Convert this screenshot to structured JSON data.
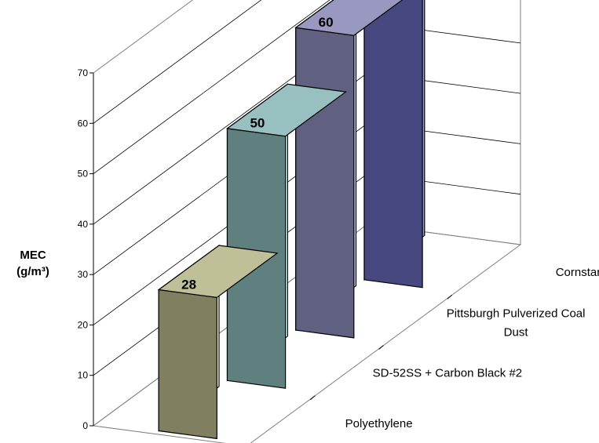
{
  "chart_data": {
    "type": "bar",
    "three_d": true,
    "title": "",
    "ylabel": "MEC (g/m³)",
    "ylabel_lines": [
      "MEC",
      "(g/m³)"
    ],
    "xlabel": "",
    "ylim": [
      0,
      70
    ],
    "yticks": [
      0,
      10,
      20,
      30,
      40,
      50,
      60,
      70
    ],
    "grid": true,
    "legend": "none",
    "categories": [
      "Polyethylene",
      "SD-52SS + Carbon Black #2",
      "Pittsburgh Pulverized Coal Dust",
      "Cornstarch"
    ],
    "category_label_lines": [
      [
        "Polyethylene"
      ],
      [
        "SD-52SS + Carbon Black #2"
      ],
      [
        "Pittsburgh Pulverized Coal",
        "Dust"
      ],
      [
        "Cornstarch"
      ]
    ],
    "values": [
      28,
      50,
      60,
      60
    ],
    "colors": [
      {
        "front": "#FFFFCC",
        "side": "#808060",
        "top": "#C0C098"
      },
      {
        "front": "#CCFFFF",
        "side": "#608080",
        "top": "#98C0C0"
      },
      {
        "front": "#CCCCFF",
        "side": "#606080",
        "top": "#9898C0"
      },
      {
        "front": "#9999FF",
        "side": "#484880",
        "top": "#7373C0"
      }
    ]
  }
}
